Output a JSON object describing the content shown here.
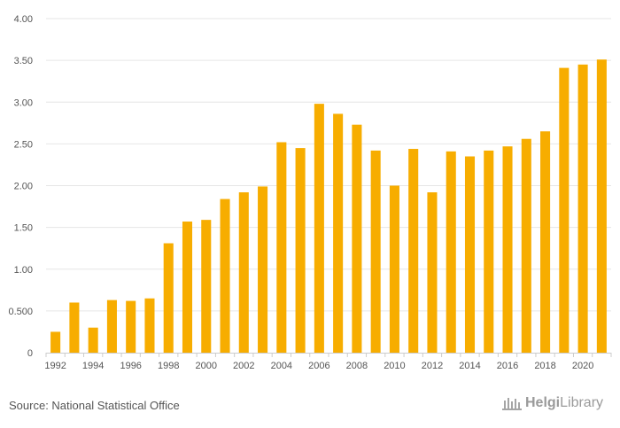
{
  "chart_data": {
    "type": "bar",
    "title": "",
    "xlabel": "",
    "ylabel": "",
    "categories": [
      "1992",
      "1993",
      "1994",
      "1995",
      "1996",
      "1997",
      "1998",
      "1999",
      "2000",
      "2001",
      "2002",
      "2003",
      "2004",
      "2005",
      "2006",
      "2007",
      "2008",
      "2009",
      "2010",
      "2011",
      "2012",
      "2013",
      "2014",
      "2015",
      "2016",
      "2017",
      "2018",
      "2019",
      "2020",
      "2021"
    ],
    "x_tick_labels": [
      "1992",
      "1994",
      "1996",
      "1998",
      "2000",
      "2002",
      "2004",
      "2006",
      "2008",
      "2010",
      "2012",
      "2014",
      "2016",
      "2018",
      "2020"
    ],
    "values": [
      0.25,
      0.6,
      0.3,
      0.63,
      0.62,
      0.65,
      1.31,
      1.57,
      1.59,
      1.84,
      1.92,
      1.99,
      2.52,
      2.45,
      2.98,
      2.86,
      2.73,
      2.42,
      2.0,
      2.44,
      1.92,
      2.41,
      2.35,
      2.42,
      2.47,
      2.56,
      2.65,
      3.41,
      3.45,
      3.51
    ],
    "ylim": [
      0,
      4.0
    ],
    "y_ticks": [
      0,
      0.5,
      1.0,
      1.5,
      2.0,
      2.5,
      3.0,
      3.5,
      4.0
    ],
    "y_tick_labels": [
      "0",
      "0.500",
      "1.00",
      "1.50",
      "2.00",
      "2.50",
      "3.00",
      "3.50",
      "4.00"
    ],
    "grid": true,
    "bar_color": "#f7ad00"
  },
  "footer": {
    "source": "Source: National Statistical Office",
    "logo_word_1": "Helgi",
    "logo_word_2": "Library"
  }
}
